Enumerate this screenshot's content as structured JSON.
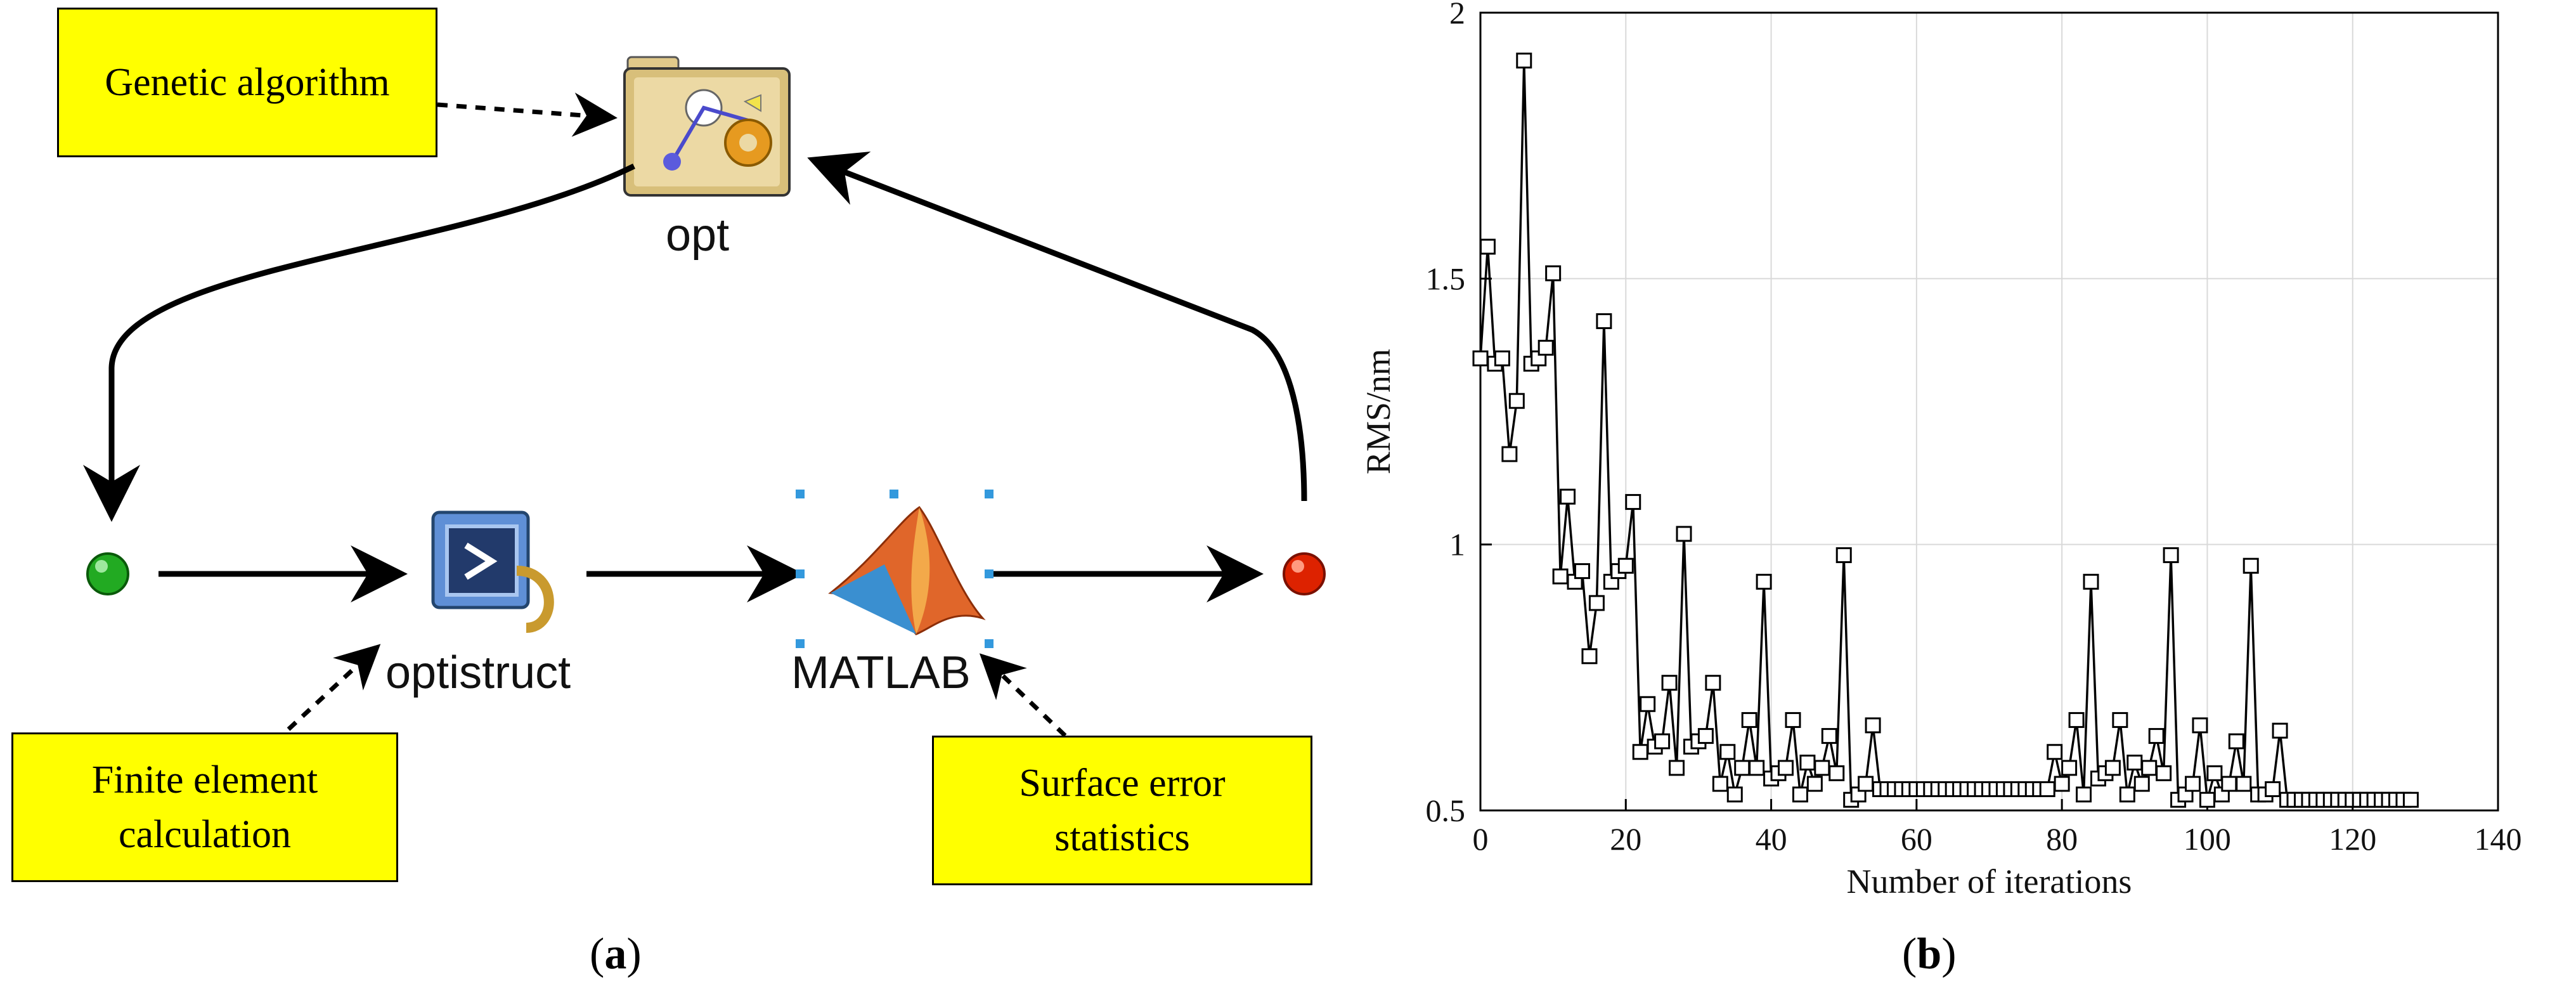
{
  "panel_a": {
    "nodes": {
      "opt": "opt",
      "optistruct": "optistruct",
      "matlab": "MATLAB"
    },
    "notes": {
      "genetic": "Genetic algorithm",
      "finite_line1": "Finite element",
      "finite_line2": "calculation",
      "surface_line1": "Surface error",
      "surface_line2": "statistics"
    },
    "caption_open": "(",
    "caption_letter": "a",
    "caption_close": ")",
    "colors": {
      "note": "#ffff00",
      "start": "#22aa22",
      "end": "#dd2200"
    }
  },
  "chart_data": {
    "type": "line",
    "title": "",
    "xlabel": "Number of iterations",
    "ylabel": "RMS/nm",
    "xlim": [
      0,
      140
    ],
    "ylim": [
      0.5,
      2
    ],
    "xticks": [
      0,
      20,
      40,
      60,
      80,
      100,
      120,
      140
    ],
    "yticks": [
      0.5,
      1,
      1.5,
      2
    ],
    "grid": true,
    "marker": "square",
    "series": [
      {
        "name": "RMS",
        "x": [
          0,
          1,
          2,
          3,
          4,
          5,
          6,
          7,
          8,
          9,
          10,
          11,
          12,
          13,
          14,
          15,
          16,
          17,
          18,
          19,
          20,
          21,
          22,
          23,
          24,
          25,
          26,
          27,
          28,
          29,
          30,
          31,
          32,
          33,
          34,
          35,
          36,
          37,
          38,
          39,
          40,
          41,
          42,
          43,
          44,
          45,
          46,
          47,
          48,
          49,
          50,
          51,
          52,
          53,
          54,
          55,
          56,
          57,
          58,
          59,
          60,
          61,
          62,
          63,
          64,
          65,
          66,
          67,
          68,
          69,
          70,
          71,
          72,
          73,
          74,
          75,
          76,
          77,
          78,
          79,
          80,
          81,
          82,
          83,
          84,
          85,
          86,
          87,
          88,
          89,
          90,
          91,
          92,
          93,
          94,
          95,
          96,
          97,
          98,
          99,
          100,
          101,
          102,
          103,
          104,
          105,
          106,
          107,
          108,
          109,
          110,
          111,
          112,
          113,
          114,
          115,
          116,
          117,
          118,
          119,
          120,
          121,
          122,
          123,
          124,
          125,
          126,
          127,
          128
        ],
        "values": [
          1.35,
          1.56,
          1.34,
          1.35,
          1.17,
          1.27,
          1.91,
          1.34,
          1.35,
          1.37,
          1.51,
          0.94,
          1.09,
          0.93,
          0.95,
          0.79,
          0.89,
          1.42,
          0.93,
          0.95,
          0.96,
          1.08,
          0.61,
          0.7,
          0.62,
          0.63,
          0.74,
          0.58,
          1.02,
          0.62,
          0.63,
          0.64,
          0.74,
          0.55,
          0.61,
          0.53,
          0.58,
          0.67,
          0.58,
          0.93,
          0.56,
          0.57,
          0.58,
          0.67,
          0.53,
          0.59,
          0.55,
          0.58,
          0.64,
          0.57,
          0.98,
          0.52,
          0.53,
          0.55,
          0.66,
          0.54,
          0.54,
          0.54,
          0.54,
          0.54,
          0.54,
          0.54,
          0.54,
          0.54,
          0.54,
          0.54,
          0.54,
          0.54,
          0.54,
          0.54,
          0.54,
          0.54,
          0.54,
          0.54,
          0.54,
          0.54,
          0.54,
          0.54,
          0.54,
          0.61,
          0.55,
          0.58,
          0.67,
          0.53,
          0.93,
          0.56,
          0.57,
          0.58,
          0.67,
          0.53,
          0.59,
          0.55,
          0.58,
          0.64,
          0.57,
          0.98,
          0.52,
          0.53,
          0.55,
          0.66,
          0.52,
          0.57,
          0.53,
          0.55,
          0.63,
          0.55,
          0.96,
          0.53,
          0.53,
          0.54,
          0.65,
          0.52,
          0.52,
          0.52,
          0.52,
          0.52,
          0.52,
          0.52,
          0.52,
          0.52,
          0.52,
          0.52,
          0.52,
          0.52,
          0.52,
          0.52,
          0.52,
          0.52,
          0.52
        ]
      }
    ],
    "caption_open": "(",
    "caption_letter": "b",
    "caption_close": ")",
    "colors": {
      "line": "#000000",
      "grid": "#d9d9d9"
    }
  }
}
